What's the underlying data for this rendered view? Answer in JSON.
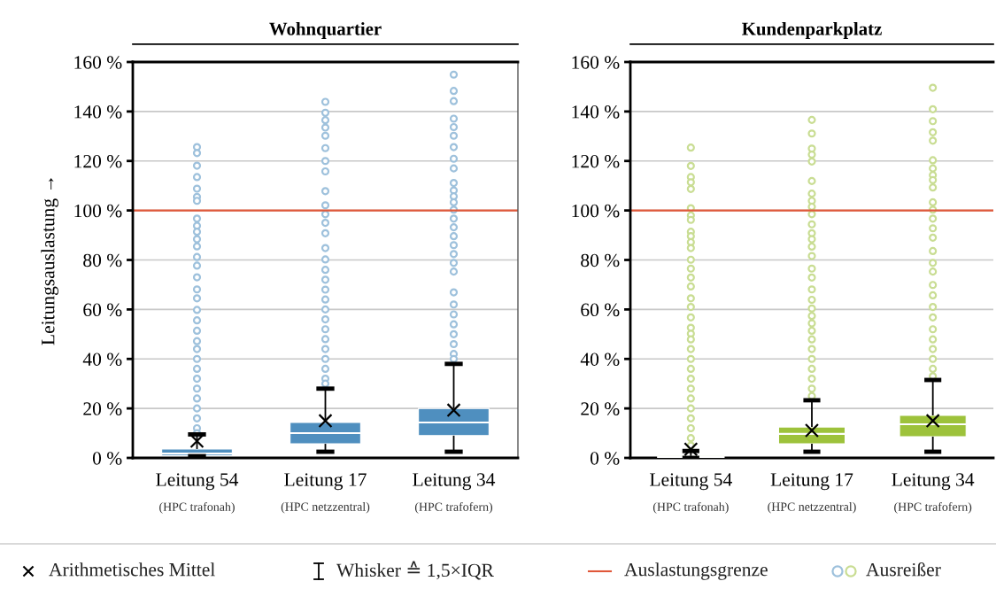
{
  "chart_data": [
    {
      "type": "box",
      "title": "Wohnquartier",
      "ylabel": "Leitungsauslastung →",
      "categories": [
        "Leitung 54\n(HPC trafonah)",
        "Leitung 17\n(HPC netzzentral)",
        "Leitung 34\n(HPC trafofern)"
      ],
      "series": [
        {
          "color": "#4f8fbf",
          "boxes": [
            {
              "low": 0.7,
              "q1": 1,
              "median": 1.8,
              "q3": 3.6,
              "high": 9.5,
              "mean": 6.8,
              "outliers": [
                125.6,
                123.2,
                118.1,
                113.5,
                108.8,
                105.5,
                103.9,
                96.7,
                93.8,
                91.4,
                88.4,
                85.5,
                81.2,
                77.7,
                73,
                68.1,
                64.5,
                59.8,
                55.6,
                51.4,
                47.2,
                44,
                40,
                36,
                32,
                28,
                24,
                20,
                16,
                12,
                10
              ]
            },
            {
              "low": 2.5,
              "q1": 5.7,
              "median": 10,
              "q3": 14.3,
              "high": 28,
              "mean": 15,
              "outliers": [
                143.9,
                139.5,
                136.5,
                133.5,
                130.2,
                125.2,
                120,
                115.8,
                107.8,
                102.1,
                98.5,
                95,
                90.8,
                84.8,
                80.2,
                76,
                72,
                68,
                64,
                60,
                56,
                52,
                48,
                44,
                40,
                36,
                32,
                30
              ]
            },
            {
              "low": 2.5,
              "q1": 9,
              "median": 14.3,
              "q3": 20,
              "high": 38,
              "mean": 19.3,
              "outliers": [
                154.9,
                148.3,
                144.2,
                137.1,
                133.7,
                130.2,
                125.6,
                120.9,
                117,
                111.1,
                108.1,
                105.7,
                103.3,
                100.3,
                96.7,
                93.2,
                89.6,
                86,
                82.4,
                78.8,
                75.3,
                66.9,
                62,
                58,
                54,
                50,
                46,
                42,
                40
              ]
            }
          ]
        }
      ],
      "ylim": [
        0,
        160
      ],
      "yticks": [
        {
          "value": 0,
          "label": "0 %"
        },
        {
          "value": 20,
          "label": "20 %"
        },
        {
          "value": 40,
          "label": "40 %"
        },
        {
          "value": 60,
          "label": "60 %"
        },
        {
          "value": 80,
          "label": "80 %"
        },
        {
          "value": 100,
          "label": "100 %"
        },
        {
          "value": 120,
          "label": "120 %"
        },
        {
          "value": 140,
          "label": "140 %"
        },
        {
          "value": 160,
          "label": "160 %"
        }
      ],
      "grid": "y",
      "marker": "circle",
      "ref_lines": [
        {
          "axis": "y",
          "value": 100,
          "label": "Auslastungsgrenze",
          "color": "#e0583a"
        }
      ],
      "legend": "bottom",
      "annotations": [
        "Arithmetisches Mittel",
        "Whisker ≙ 1,5×IQR",
        "Ausreißer"
      ]
    },
    {
      "type": "box",
      "title": "Kundenparkplatz",
      "categories": [
        "Leitung 54\n(HPC trafonah)",
        "Leitung 17\n(HPC netzzentral)",
        "Leitung 34\n(HPC trafofern)"
      ],
      "series": [
        {
          "color": "#9dc23b",
          "boxes": [
            {
              "low": 0,
              "q1": 0.1,
              "median": 0.4,
              "q3": 0.8,
              "high": 2.8,
              "mean": 3.5,
              "outliers": [
                125.4,
                118,
                113.5,
                111.4,
                108.7,
                100.9,
                98,
                96.2,
                91.4,
                89.6,
                87.2,
                84.8,
                80.1,
                76.5,
                72.9,
                69.3,
                64.5,
                61,
                56.8,
                52.6,
                50.2,
                47.9,
                44,
                40,
                36,
                32,
                28,
                24,
                20,
                16,
                12,
                8,
                5
              ]
            },
            {
              "low": 2.5,
              "q1": 5.7,
              "median": 9.7,
              "q3": 12.5,
              "high": 23.3,
              "mean": 11.1,
              "outliers": [
                136.6,
                131.1,
                125,
                122.6,
                119.8,
                111.9,
                106.8,
                103.9,
                101.5,
                98.5,
                94.4,
                90.8,
                88.4,
                85.4,
                81.6,
                76.5,
                72.9,
                68.1,
                63.9,
                60.4,
                57.4,
                54.4,
                51.4,
                47.9,
                44,
                40,
                36,
                32,
                28,
                25
              ]
            },
            {
              "low": 2.5,
              "q1": 8.6,
              "median": 13.6,
              "q3": 17.2,
              "high": 31.5,
              "mean": 15,
              "outliers": [
                149.6,
                140.9,
                136.1,
                131.6,
                128.2,
                120.3,
                117,
                114.3,
                112.3,
                109.3,
                103.3,
                100.3,
                96.7,
                92.8,
                89,
                83.6,
                78.8,
                75.3,
                69.9,
                65.7,
                61,
                56.8,
                52,
                47.9,
                44,
                40,
                36,
                33
              ]
            }
          ]
        }
      ],
      "ylim": [
        0,
        160
      ],
      "yticks": [
        {
          "value": 0,
          "label": "0 %"
        },
        {
          "value": 20,
          "label": "20 %"
        },
        {
          "value": 40,
          "label": "40 %"
        },
        {
          "value": 60,
          "label": "60 %"
        },
        {
          "value": 80,
          "label": "80 %"
        },
        {
          "value": 100,
          "label": "100 %"
        },
        {
          "value": 120,
          "label": "120 %"
        },
        {
          "value": 140,
          "label": "140 %"
        },
        {
          "value": 160,
          "label": "160 %"
        }
      ],
      "grid": "y",
      "marker": "circle",
      "ref_lines": [
        {
          "axis": "y",
          "value": 100,
          "color": "#e0583a"
        }
      ]
    }
  ]
}
